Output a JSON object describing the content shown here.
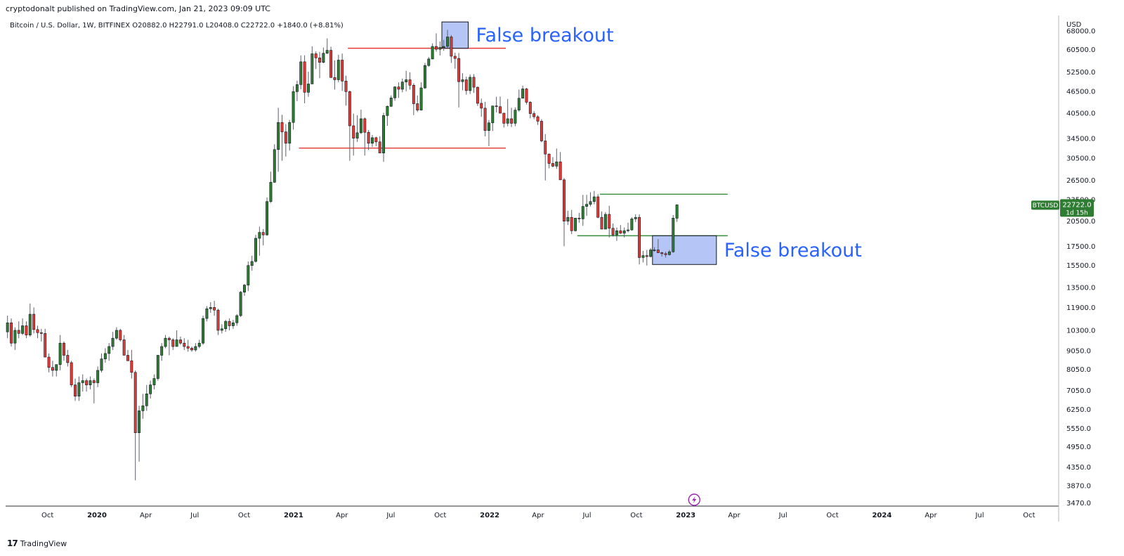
{
  "header": {
    "published": "cryptodonalt published on TradingView.com, Jan 21, 2023 09:09 UTC"
  },
  "legend": {
    "text": "Bitcoin / U.S. Dollar, 1W, BITFINEX  O20882.0  H22791.0  L20408.0  C22722.0  +1840.0 (+8.81%)"
  },
  "footer": {
    "brand": "TradingView",
    "brand_icon": "tradingview-logo-icon"
  },
  "annotations": [
    {
      "text": "False breakout",
      "near": "top"
    },
    {
      "text": "False breakout",
      "near": "bottom"
    }
  ],
  "price_badge": {
    "symbol": "BTCUSD",
    "price": "22722.0",
    "countdown": "1d 15h"
  },
  "colors": {
    "up": "#2e7d32",
    "down": "#e53935",
    "wick": "#5d606b",
    "resistance": "#e53935",
    "support": "#388e3c",
    "box_fill": "#a8bcf5",
    "annotation": "#2962ff",
    "badge": "#2e7d32"
  },
  "chart_data": {
    "type": "candlestick",
    "symbol": "Bitcoin / U.S. Dollar",
    "interval": "1W",
    "exchange": "BITFINEX",
    "y_scale": "log",
    "y_unit": "USD",
    "ylim": [
      3400,
      75000
    ],
    "xlim": [
      "2019-07-15",
      "2024-11-25"
    ],
    "y_ticks": [
      "68000.0",
      "60500.0",
      "52500.0",
      "46500.0",
      "40500.0",
      "34500.0",
      "30500.0",
      "26500.0",
      "23500.0",
      "20500.0",
      "17500.0",
      "15500.0",
      "13500.0",
      "11900.0",
      "10300.0",
      "9050.0",
      "8050.0",
      "7050.0",
      "6250.0",
      "5550.0",
      "4950.0",
      "4350.0",
      "3870.0",
      "3470.0"
    ],
    "x_ticks": [
      {
        "label": "Oct",
        "date": "2019-10-01"
      },
      {
        "label": "2020",
        "date": "2020-01-01"
      },
      {
        "label": "Apr",
        "date": "2020-04-01"
      },
      {
        "label": "Jul",
        "date": "2020-07-01"
      },
      {
        "label": "Oct",
        "date": "2020-10-01"
      },
      {
        "label": "2021",
        "date": "2021-01-01"
      },
      {
        "label": "Apr",
        "date": "2021-04-01"
      },
      {
        "label": "Jul",
        "date": "2021-07-01"
      },
      {
        "label": "Oct",
        "date": "2021-10-01"
      },
      {
        "label": "2022",
        "date": "2022-01-01"
      },
      {
        "label": "Apr",
        "date": "2022-04-01"
      },
      {
        "label": "Jul",
        "date": "2022-07-01"
      },
      {
        "label": "Oct",
        "date": "2022-10-01"
      },
      {
        "label": "2023",
        "date": "2023-01-01"
      },
      {
        "label": "Apr",
        "date": "2023-04-01"
      },
      {
        "label": "Jul",
        "date": "2023-07-01"
      },
      {
        "label": "Oct",
        "date": "2023-10-01"
      },
      {
        "label": "2024",
        "date": "2024-01-01"
      },
      {
        "label": "Apr",
        "date": "2024-04-01"
      },
      {
        "label": "Jul",
        "date": "2024-07-01"
      },
      {
        "label": "Oct",
        "date": "2024-10-01"
      }
    ],
    "candles_start": "2019-07-15",
    "candle_interval_days": 7,
    "candles_ohlc": [
      [
        10200,
        11300,
        9800,
        10800
      ],
      [
        10800,
        11100,
        9300,
        9500
      ],
      [
        9500,
        10500,
        9100,
        10300
      ],
      [
        10300,
        10900,
        9800,
        10100
      ],
      [
        10100,
        11100,
        10000,
        10600
      ],
      [
        10600,
        10900,
        9800,
        10000
      ],
      [
        10000,
        12200,
        9900,
        11400
      ],
      [
        11400,
        11900,
        10100,
        10350
      ],
      [
        10350,
        10600,
        9800,
        10150
      ],
      [
        10150,
        10400,
        9600,
        10100
      ],
      [
        10100,
        10400,
        8700,
        8700
      ],
      [
        8700,
        8900,
        7900,
        8150
      ],
      [
        8150,
        8500,
        7700,
        8000
      ],
      [
        8000,
        8200,
        7700,
        8300
      ],
      [
        8300,
        10000,
        8000,
        9500
      ],
      [
        9500,
        9600,
        8500,
        8800
      ],
      [
        8800,
        9100,
        8200,
        8400
      ],
      [
        8400,
        8500,
        7200,
        7300
      ],
      [
        7300,
        7600,
        6600,
        6800
      ],
      [
        6800,
        7700,
        6600,
        7400
      ],
      [
        7400,
        7800,
        7000,
        7500
      ],
      [
        7500,
        7600,
        7000,
        7300
      ],
      [
        7300,
        7700,
        7100,
        7500
      ],
      [
        7500,
        7600,
        6500,
        7400
      ],
      [
        7400,
        8200,
        7200,
        8000
      ],
      [
        8000,
        8900,
        7900,
        8600
      ],
      [
        8600,
        9200,
        8400,
        8900
      ],
      [
        8900,
        9500,
        8500,
        9300
      ],
      [
        9300,
        10200,
        9100,
        9800
      ],
      [
        9800,
        10500,
        9700,
        10300
      ],
      [
        10300,
        10400,
        9600,
        9700
      ],
      [
        9700,
        10000,
        9000,
        8800
      ],
      [
        8800,
        9100,
        8500,
        8500
      ],
      [
        8500,
        9100,
        7600,
        7900
      ],
      [
        7900,
        8000,
        4000,
        5400
      ],
      [
        5400,
        6400,
        4500,
        6200
      ],
      [
        6200,
        6900,
        5900,
        6400
      ],
      [
        6400,
        7300,
        6200,
        6900
      ],
      [
        6900,
        7500,
        6700,
        7300
      ],
      [
        7300,
        7800,
        7100,
        7600
      ],
      [
        7600,
        8800,
        7500,
        8800
      ],
      [
        8800,
        9500,
        8500,
        9300
      ],
      [
        9300,
        10000,
        9200,
        9800
      ],
      [
        9800,
        9900,
        8800,
        9700
      ],
      [
        9700,
        9800,
        9100,
        9300
      ],
      [
        9300,
        10300,
        9300,
        9700
      ],
      [
        9700,
        9900,
        9400,
        9500
      ],
      [
        9500,
        9800,
        9100,
        9300
      ],
      [
        9300,
        9700,
        9000,
        9200
      ],
      [
        9200,
        9300,
        9000,
        9100
      ],
      [
        9100,
        9500,
        9000,
        9300
      ],
      [
        9300,
        9700,
        9200,
        9500
      ],
      [
        9500,
        11300,
        9400,
        11100
      ],
      [
        11100,
        12000,
        10900,
        11800
      ],
      [
        11800,
        12300,
        11500,
        11900
      ],
      [
        11900,
        12400,
        11300,
        11700
      ],
      [
        11700,
        11800,
        10000,
        10300
      ],
      [
        10300,
        10700,
        10100,
        10400
      ],
      [
        10400,
        11000,
        10200,
        10900
      ],
      [
        10900,
        11100,
        10300,
        10600
      ],
      [
        10600,
        11000,
        10400,
        10800
      ],
      [
        10800,
        11400,
        10600,
        11300
      ],
      [
        11300,
        13200,
        11200,
        13100
      ],
      [
        13100,
        13800,
        12800,
        13700
      ],
      [
        13700,
        15900,
        13200,
        15500
      ],
      [
        15500,
        16500,
        15000,
        15900
      ],
      [
        15900,
        18800,
        15800,
        18400
      ],
      [
        18400,
        19800,
        16500,
        19100
      ],
      [
        19100,
        19500,
        17600,
        18800
      ],
      [
        18800,
        23800,
        18700,
        23200
      ],
      [
        23200,
        28000,
        23000,
        26200
      ],
      [
        26200,
        33300,
        26100,
        32200
      ],
      [
        32200,
        41900,
        28000,
        38200
      ],
      [
        38200,
        40100,
        30000,
        36000
      ],
      [
        36000,
        37800,
        30800,
        33500
      ],
      [
        33500,
        38800,
        32000,
        38200
      ],
      [
        38200,
        48000,
        36500,
        46400
      ],
      [
        46400,
        49700,
        43700,
        48500
      ],
      [
        48500,
        58300,
        47100,
        56000
      ],
      [
        56000,
        58300,
        43100,
        46200
      ],
      [
        46200,
        52600,
        44900,
        48700
      ],
      [
        48700,
        61700,
        48700,
        58900
      ],
      [
        58900,
        59800,
        53500,
        57400
      ],
      [
        57400,
        59600,
        50500,
        55800
      ],
      [
        55800,
        61300,
        55500,
        59100
      ],
      [
        59100,
        64900,
        58800,
        60200
      ],
      [
        60200,
        61600,
        50700,
        50700
      ],
      [
        50700,
        56500,
        47000,
        50000
      ],
      [
        50000,
        58500,
        49200,
        56600
      ],
      [
        56600,
        59000,
        46600,
        49600
      ],
      [
        49600,
        51300,
        42500,
        46400
      ],
      [
        46400,
        46700,
        30000,
        37400
      ],
      [
        37400,
        40400,
        31000,
        34600
      ],
      [
        34600,
        40000,
        33800,
        35800
      ],
      [
        35800,
        41400,
        35500,
        39100
      ],
      [
        39100,
        39400,
        31000,
        35900
      ],
      [
        35900,
        36400,
        32100,
        33500
      ],
      [
        33500,
        35300,
        32700,
        34700
      ],
      [
        34700,
        34900,
        32900,
        33800
      ],
      [
        33800,
        35000,
        31700,
        31500
      ],
      [
        31500,
        40600,
        29800,
        39900
      ],
      [
        39900,
        42500,
        37400,
        42300
      ],
      [
        42300,
        45300,
        42100,
        44600
      ],
      [
        44600,
        48000,
        43800,
        47800
      ],
      [
        47800,
        49200,
        44600,
        47100
      ],
      [
        47100,
        50400,
        46200,
        49300
      ],
      [
        49300,
        52900,
        46500,
        50000
      ],
      [
        50000,
        52400,
        47000,
        48300
      ],
      [
        48300,
        48900,
        40000,
        43000
      ],
      [
        43000,
        45300,
        40800,
        41300
      ],
      [
        41300,
        49200,
        41200,
        47500
      ],
      [
        47500,
        55600,
        47200,
        54700
      ],
      [
        54700,
        57700,
        54300,
        57000
      ],
      [
        57000,
        62900,
        56900,
        61700
      ],
      [
        61700,
        67000,
        59700,
        60600
      ],
      [
        60600,
        63700,
        58300,
        61300
      ],
      [
        61300,
        64300,
        60000,
        61700
      ],
      [
        61700,
        68500,
        61200,
        65500
      ],
      [
        65500,
        66300,
        55600,
        58000
      ],
      [
        58000,
        59300,
        53600,
        57200
      ],
      [
        57200,
        59200,
        42000,
        49400
      ],
      [
        49400,
        52100,
        46800,
        50000
      ],
      [
        50000,
        51000,
        45500,
        46700
      ],
      [
        46700,
        51700,
        45700,
        50800
      ],
      [
        50800,
        51800,
        46000,
        47700
      ],
      [
        47700,
        47900,
        42400,
        43100
      ],
      [
        43100,
        44400,
        39600,
        41800
      ],
      [
        41800,
        43500,
        35000,
        36300
      ],
      [
        36300,
        38800,
        32900,
        38100
      ],
      [
        38100,
        38500,
        36200,
        42400
      ],
      [
        42400,
        44900,
        40700,
        42200
      ],
      [
        42200,
        45000,
        41400,
        40500
      ],
      [
        40500,
        40600,
        37000,
        38000
      ],
      [
        38000,
        44300,
        37300,
        39100
      ],
      [
        39100,
        41900,
        37100,
        38000
      ],
      [
        38000,
        42000,
        37300,
        41300
      ],
      [
        41300,
        47000,
        40900,
        44500
      ],
      [
        44500,
        48200,
        44500,
        47200
      ],
      [
        47200,
        47500,
        42800,
        43400
      ],
      [
        43400,
        43700,
        39200,
        40400
      ],
      [
        40400,
        41000,
        39000,
        39600
      ],
      [
        39600,
        40000,
        37600,
        38500
      ],
      [
        38500,
        39000,
        33700,
        34000
      ],
      [
        34000,
        35500,
        26500,
        31300
      ],
      [
        31300,
        31400,
        28600,
        29500
      ],
      [
        29500,
        30700,
        28800,
        29000
      ],
      [
        29000,
        32400,
        28500,
        29800
      ],
      [
        29800,
        31700,
        26600,
        26600
      ],
      [
        26600,
        26900,
        17500,
        20500
      ],
      [
        20500,
        21900,
        20000,
        21000
      ],
      [
        21000,
        22000,
        18900,
        19300
      ],
      [
        19300,
        20400,
        19200,
        20900
      ],
      [
        20900,
        21600,
        20300,
        20800
      ],
      [
        20800,
        24200,
        19900,
        22500
      ],
      [
        22500,
        24200,
        21200,
        22800
      ],
      [
        22800,
        24600,
        22500,
        23200
      ],
      [
        23200,
        24800,
        22800,
        23900
      ],
      [
        23900,
        24300,
        20900,
        21000
      ],
      [
        21000,
        21800,
        19600,
        19500
      ],
      [
        19500,
        21700,
        19800,
        21400
      ],
      [
        21400,
        22600,
        18500,
        19600
      ],
      [
        19600,
        20200,
        18600,
        18800
      ],
      [
        18800,
        19700,
        18100,
        19300
      ],
      [
        19300,
        20000,
        18900,
        19000
      ],
      [
        19000,
        19700,
        18500,
        19300
      ],
      [
        19300,
        20300,
        19100,
        19400
      ],
      [
        19400,
        21000,
        19300,
        20800
      ],
      [
        20800,
        21400,
        20400,
        21000
      ],
      [
        21000,
        21400,
        15600,
        16300
      ],
      [
        16300,
        17000,
        15800,
        16500
      ],
      [
        16500,
        17100,
        15500,
        16400
      ],
      [
        16400,
        17300,
        16300,
        17100
      ],
      [
        17100,
        17400,
        16900,
        17100
      ],
      [
        17100,
        18300,
        16900,
        16800
      ],
      [
        16800,
        16900,
        16400,
        16700
      ],
      [
        16700,
        16900,
        16300,
        16600
      ],
      [
        16600,
        17100,
        16500,
        16900
      ],
      [
        16900,
        21300,
        16800,
        20900
      ],
      [
        20882,
        22791,
        20408,
        22722
      ]
    ],
    "horizontal_levels": [
      {
        "kind": "resistance",
        "price": 61000,
        "from": "2021-04-12",
        "to": "2022-01-31"
      },
      {
        "kind": "resistance",
        "price": 32500,
        "from": "2021-01-11",
        "to": "2022-01-31"
      },
      {
        "kind": "support",
        "price": 24300,
        "from": "2022-07-25",
        "to": "2023-03-20"
      },
      {
        "kind": "support",
        "price": 18700,
        "from": "2022-06-13",
        "to": "2023-03-20"
      }
    ],
    "boxes": [
      {
        "from": "2021-10-04",
        "to": "2021-11-22",
        "low": 61000,
        "high": 72000
      },
      {
        "from": "2022-10-31",
        "to": "2023-02-27",
        "low": 15600,
        "high": 18700
      }
    ]
  }
}
